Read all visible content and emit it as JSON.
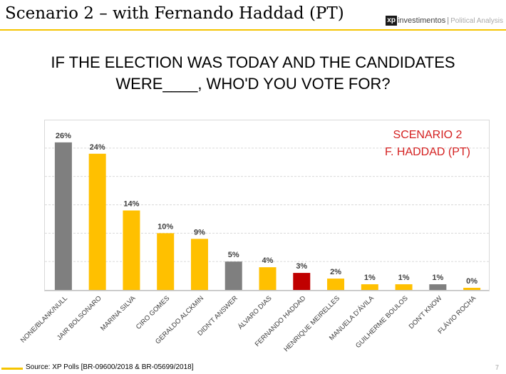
{
  "slide": {
    "title": "Scenario 2 – with Fernando Haddad (PT)",
    "logo_mark": "xp",
    "logo_text": "investimentos",
    "logo_subtitle": "Political Analysis",
    "question": "IF THE ELECTION WAS TODAY AND THE CANDIDATES WERE____, WHO'D YOU VOTE FOR?",
    "scenario_line1": "SCENARIO 2",
    "scenario_line2": "F. HADDAD (PT)",
    "source": "Source: XP Polls [BR-09600/2018 & BR-05699/2018]",
    "page_number": "7"
  },
  "colors": {
    "gray": "#7f7f7f",
    "yellow": "#ffc000",
    "red": "#c00000",
    "accent": "#f5c400",
    "scenario_text": "#d42020"
  },
  "chart_data": {
    "type": "bar",
    "title": "",
    "xlabel": "",
    "ylabel": "",
    "ylim": [
      0,
      30
    ],
    "grid": true,
    "categories": [
      "NONE/BLANK/NULL",
      "JAIR BOLSONARO",
      "MARINA SILVA",
      "CIRO GOMES",
      "GERALDO ALCKMIN",
      "DIDN'T ANSWER",
      "ÁLVARO DIAS",
      "FERNANDO HADDAD",
      "HENRIQUE MEIRELLES",
      "MANUELA D'ÁVILA",
      "GUILHERME BOULOS",
      "DON'T KNOW",
      "FLÁVIO ROCHA"
    ],
    "values": [
      26,
      24,
      14,
      10,
      9,
      5,
      4,
      3,
      2,
      1,
      1,
      1,
      0
    ],
    "value_labels": [
      "26%",
      "24%",
      "14%",
      "10%",
      "9%",
      "5%",
      "4%",
      "3%",
      "2%",
      "1%",
      "1%",
      "1%",
      "0%"
    ],
    "bar_colors": [
      "gray",
      "yellow",
      "yellow",
      "yellow",
      "yellow",
      "gray",
      "yellow",
      "red",
      "yellow",
      "yellow",
      "yellow",
      "gray",
      "yellow"
    ]
  }
}
